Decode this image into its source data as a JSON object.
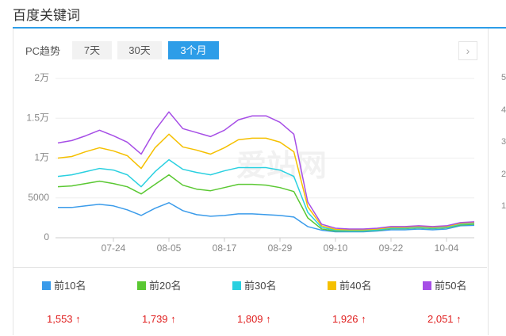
{
  "page_title": "百度关键词",
  "tabs": {
    "label": "PC趋势",
    "options": [
      "7天",
      "30天",
      "3个月"
    ],
    "active": 2
  },
  "chart_data": {
    "type": "line",
    "watermark": "爱站网",
    "categories": [
      null,
      null,
      null,
      null,
      "07-24",
      null,
      null,
      null,
      "08-05",
      null,
      null,
      null,
      "08-17",
      null,
      null,
      null,
      "08-29",
      null,
      null,
      null,
      "09-10",
      null,
      null,
      null,
      "09-22",
      null,
      null,
      null,
      "10-04",
      null,
      null
    ],
    "ylim": [
      0,
      20000
    ],
    "yticks": [
      0,
      5000,
      {
        "value": 10000,
        "label": "1万"
      },
      {
        "value": 15000,
        "label": "1.5万"
      },
      {
        "value": 20000,
        "label": "2万"
      }
    ],
    "grid": true,
    "series": [
      {
        "name": "前10名",
        "color": "#3a9bea",
        "values": [
          3800,
          3800,
          4000,
          4200,
          4000,
          3500,
          2800,
          3700,
          4400,
          3400,
          2900,
          2700,
          2800,
          3000,
          3000,
          2900,
          2800,
          2600,
          1400,
          950,
          750,
          750,
          750,
          850,
          1000,
          1000,
          1100,
          1000,
          1100,
          1500,
          1550
        ]
      },
      {
        "name": "前20名",
        "color": "#5ac832",
        "values": [
          6400,
          6500,
          6800,
          7100,
          6800,
          6400,
          5500,
          6700,
          7900,
          6600,
          6100,
          5900,
          6300,
          6700,
          6700,
          6600,
          6300,
          5800,
          2500,
          1100,
          850,
          850,
          850,
          950,
          1150,
          1150,
          1250,
          1150,
          1250,
          1600,
          1700
        ]
      },
      {
        "name": "前30名",
        "color": "#2ad0e0",
        "values": [
          7700,
          7900,
          8300,
          8700,
          8500,
          7900,
          6400,
          8300,
          9800,
          8600,
          8200,
          7900,
          8400,
          8800,
          8800,
          8800,
          8500,
          7700,
          3200,
          1300,
          950,
          900,
          900,
          1000,
          1200,
          1200,
          1300,
          1200,
          1300,
          1700,
          1800
        ]
      },
      {
        "name": "前40名",
        "color": "#f5c000",
        "values": [
          10000,
          10200,
          10800,
          11300,
          10900,
          10300,
          8700,
          11300,
          13000,
          11400,
          11000,
          10500,
          11300,
          12300,
          12500,
          12500,
          12000,
          10800,
          3900,
          1500,
          1050,
          1000,
          1000,
          1100,
          1300,
          1300,
          1400,
          1300,
          1400,
          1800,
          1900
        ]
      },
      {
        "name": "前50名",
        "color": "#a64ee6",
        "values": [
          11900,
          12200,
          12800,
          13500,
          12800,
          12000,
          10500,
          13500,
          15800,
          13700,
          13200,
          12700,
          13500,
          14800,
          15300,
          15300,
          14500,
          13000,
          4500,
          1700,
          1200,
          1100,
          1100,
          1200,
          1400,
          1400,
          1500,
          1400,
          1500,
          1900,
          2000
        ]
      }
    ],
    "summary_values": [
      1553,
      1739,
      1809,
      1926,
      2051
    ],
    "summary_labels": [
      "1,553",
      "1,739",
      "1,809",
      "1,926",
      "2,051"
    ]
  },
  "side_panel": {
    "labels": [
      "5",
      "4",
      "3",
      "2",
      "1"
    ]
  }
}
